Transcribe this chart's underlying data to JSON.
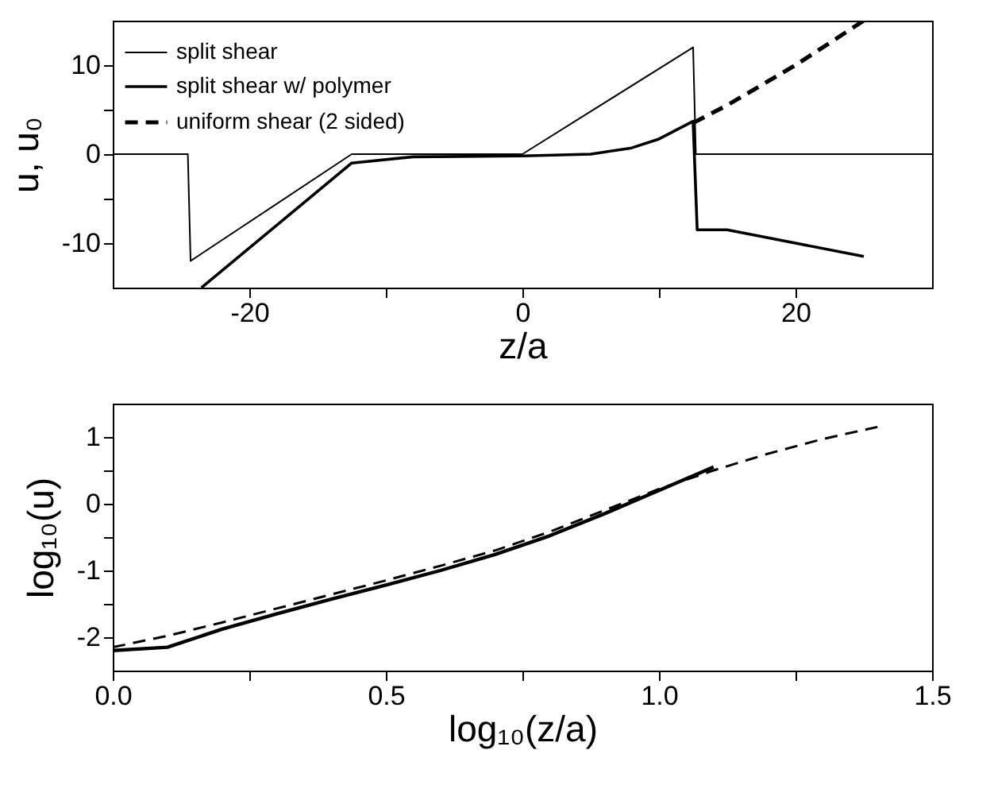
{
  "chart_data": [
    {
      "type": "line",
      "xlabel": "z/a",
      "ylabel": "u, u₀",
      "xlim": [
        -30,
        30
      ],
      "ylim": [
        -15,
        15
      ],
      "xticks": [
        -20,
        {
          "value": -10,
          "label": null
        },
        0,
        {
          "value": 10,
          "label": null
        },
        20
      ],
      "yticks": [
        -10,
        {
          "value": -5,
          "label": null
        },
        0,
        {
          "value": 5,
          "label": null
        },
        10
      ],
      "legend": "top left",
      "grid": false,
      "series": [
        {
          "name": "split shear",
          "color": "#000000",
          "line_style": "solid",
          "x": [
            -30,
            -24.5,
            -24.3,
            -12.5,
            0,
            12.5,
            12.7,
            30
          ],
          "values": [
            0,
            0,
            -12,
            0,
            0,
            12,
            0,
            0
          ]
        },
        {
          "name": "split shear w/ polymer",
          "color": "#000000",
          "line_style": "solid",
          "x": [
            -23.5,
            -12.5,
            -8,
            0,
            5,
            8,
            10,
            12.5,
            12.8,
            15,
            20,
            25
          ],
          "values": [
            -15,
            -1,
            -0.3,
            -0.2,
            0,
            0.7,
            1.7,
            3.7,
            -8.5,
            -8.5,
            -10,
            -11.5
          ]
        },
        {
          "name": "uniform shear (2 sided)",
          "color": "#000000",
          "line_style": "dashed",
          "x": [
            12.5,
            15,
            20,
            25
          ],
          "values": [
            3.5,
            5.5,
            10,
            15
          ]
        }
      ]
    },
    {
      "type": "line",
      "xlabel": "log₁₀(z/a)",
      "ylabel": "log₁₀(u)",
      "xlim": [
        0,
        1.5
      ],
      "ylim": [
        -2.5,
        1.5
      ],
      "xticks": [
        {
          "value": 0,
          "label": "0.0"
        },
        {
          "value": 0.25,
          "label": null
        },
        0.5,
        {
          "value": 0.75,
          "label": null
        },
        {
          "value": 1,
          "label": "1.0"
        },
        {
          "value": 1.25,
          "label": null
        },
        1.5
      ],
      "yticks": [
        -2,
        {
          "value": -1.5,
          "label": null
        },
        -1,
        {
          "value": -0.5,
          "label": null
        },
        0,
        {
          "value": 0.5,
          "label": null
        },
        1
      ],
      "legend": false,
      "grid": false,
      "series": [
        {
          "color": "#000000",
          "line_style": "solid",
          "x": [
            0,
            0.1,
            0.2,
            0.3,
            0.4,
            0.5,
            0.6,
            0.7,
            0.8,
            0.9,
            1.0,
            1.1
          ],
          "values": [
            -2.2,
            -2.15,
            -1.88,
            -1.65,
            -1.43,
            -1.22,
            -1.0,
            -0.76,
            -0.48,
            -0.15,
            0.2,
            0.55
          ]
        },
        {
          "color": "#000000",
          "line_style": "dashed",
          "x": [
            0,
            0.1,
            0.2,
            0.3,
            0.4,
            0.5,
            0.6,
            0.7,
            0.8,
            0.9,
            1.0,
            1.1,
            1.2,
            1.3,
            1.4
          ],
          "values": [
            -2.15,
            -1.98,
            -1.78,
            -1.57,
            -1.36,
            -1.15,
            -0.93,
            -0.7,
            -0.42,
            -0.1,
            0.22,
            0.5,
            0.75,
            0.97,
            1.15
          ]
        }
      ]
    }
  ]
}
